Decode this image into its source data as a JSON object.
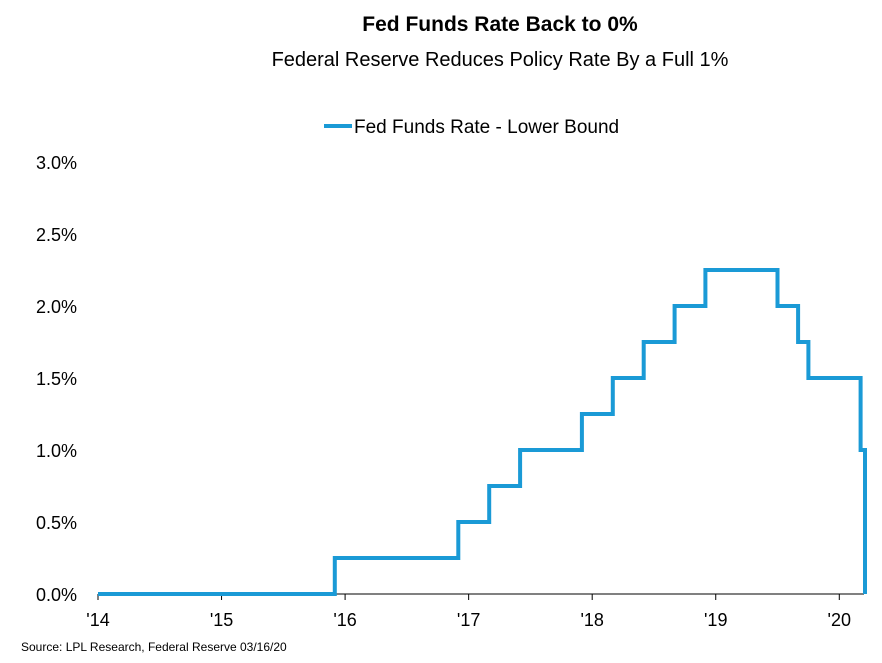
{
  "chart_data": {
    "type": "line",
    "title": "Fed Funds Rate Back to 0%",
    "subtitle": "Federal Reserve Reduces Policy Rate By a Full 1%",
    "xlabel": "",
    "ylabel": "",
    "x_tick_labels": [
      "'14",
      "'15",
      "'16",
      "'17",
      "'18",
      "'19",
      "'20"
    ],
    "x_tick_years": [
      2014,
      2015,
      2016,
      2017,
      2018,
      2019,
      2020
    ],
    "xlim": [
      2014,
      2020.2
    ],
    "y_tick_labels": [
      "0.0%",
      "0.5%",
      "1.0%",
      "1.5%",
      "2.0%",
      "2.5%",
      "3.0%"
    ],
    "y_tick_values": [
      0,
      0.5,
      1.0,
      1.5,
      2.0,
      2.5,
      3.0
    ],
    "ylim": [
      0,
      3.0
    ],
    "grid": false,
    "legend_position": "top-center",
    "step": "post",
    "series": [
      {
        "name": "Fed Funds Rate - Lower Bound",
        "color": "#1a9ad6",
        "x": [
          "2014-01",
          "2015-12",
          "2016-12",
          "2017-03",
          "2017-06",
          "2017-12",
          "2018-03",
          "2018-06",
          "2018-09",
          "2018-12",
          "2019-07",
          "2019-09",
          "2019-10",
          "2020-03-03",
          "2020-03-16"
        ],
        "values": [
          0.0,
          0.25,
          0.5,
          0.75,
          1.0,
          1.25,
          1.5,
          1.75,
          2.0,
          2.25,
          2.0,
          1.75,
          1.5,
          1.0,
          0.0
        ]
      }
    ]
  },
  "source": "Source: LPL Research, Federal Reserve 03/16/20"
}
